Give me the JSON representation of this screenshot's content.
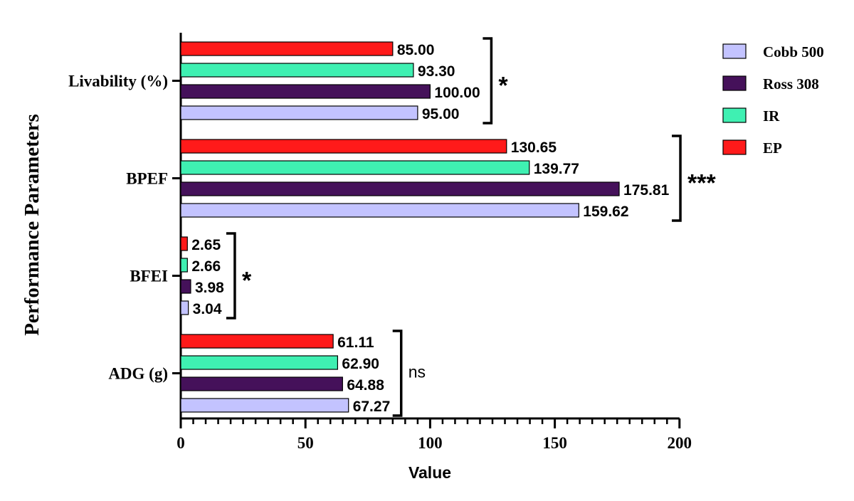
{
  "chart_data": {
    "type": "bar",
    "orientation": "horizontal",
    "xlabel": "Value",
    "ylabel": "Performance Parameters",
    "xlim": [
      0,
      200
    ],
    "xticks": [
      "0",
      "50",
      "100",
      "150",
      "200"
    ],
    "grid": false,
    "legend_position": "top-right",
    "categories": [
      "Livability (%)",
      "BPEF",
      "BFEI",
      "ADG (g)"
    ],
    "series": [
      {
        "name": "EP",
        "color": "#ff1a1a",
        "values": [
          85.0,
          130.65,
          2.65,
          61.11
        ],
        "labels": [
          "85.00",
          "130.65",
          "2.65",
          "61.11"
        ]
      },
      {
        "name": "IR",
        "color": "#3ff0b2",
        "values": [
          93.3,
          139.77,
          2.66,
          62.9
        ],
        "labels": [
          "93.30",
          "139.77",
          "2.66",
          "62.90"
        ]
      },
      {
        "name": "Ross 308",
        "color": "#45115a",
        "values": [
          100.0,
          175.81,
          3.98,
          64.88
        ],
        "labels": [
          "100.00",
          "175.81",
          "3.98",
          "64.88"
        ]
      },
      {
        "name": "Cobb 500",
        "color": "#c3c3ff",
        "values": [
          95.0,
          159.62,
          3.04,
          67.27
        ],
        "labels": [
          "95.00",
          "159.62",
          "3.04",
          "67.27"
        ]
      }
    ],
    "legend_order": [
      "Cobb 500",
      "Ross 308",
      "IR",
      "EP"
    ],
    "significance": [
      "*",
      "***",
      "*",
      "ns"
    ]
  }
}
